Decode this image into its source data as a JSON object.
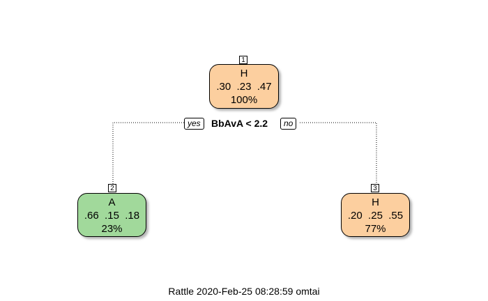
{
  "nodes": [
    {
      "id": "1",
      "class": "H",
      "probs": ".30  .23  .47",
      "pct": "100%",
      "color": "#fccf9f"
    },
    {
      "id": "2",
      "class": "A",
      "probs": ".66  .15  .18",
      "pct": "23%",
      "color": "#a1d99b"
    },
    {
      "id": "3",
      "class": "H",
      "probs": ".20  .25  .55",
      "pct": "77%",
      "color": "#fccf9f"
    }
  ],
  "split": {
    "yes": "yes",
    "label": "BbAvA < 2.2",
    "no": "no"
  },
  "footer": "Rattle 2020-Feb-25 08:28:59 omtai"
}
